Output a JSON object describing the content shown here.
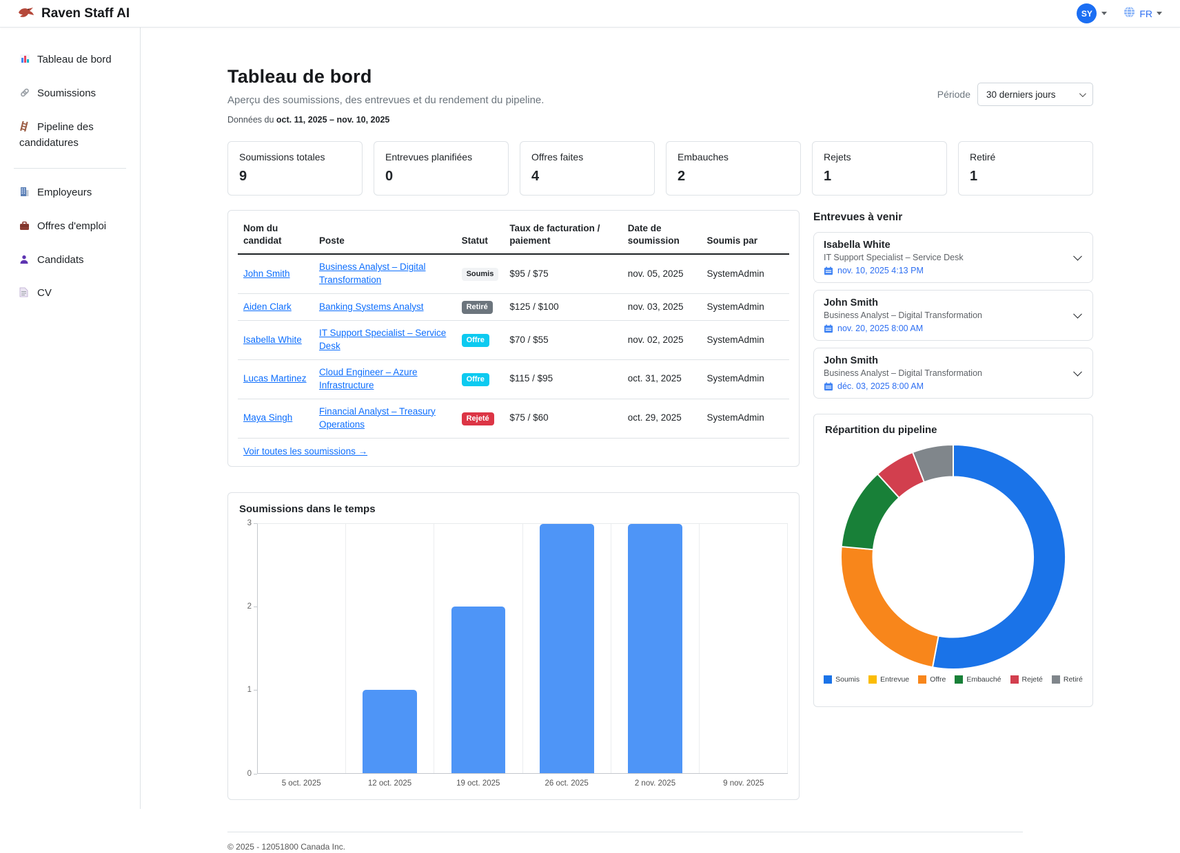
{
  "topbar": {
    "logo_icon": "eagle-icon",
    "title": "Raven Staff AI",
    "avatar_initials": "SY",
    "globe_icon": "globe-icon",
    "language": "FR"
  },
  "sidebar": {
    "items": [
      {
        "id": "dashboard",
        "icon": "bar-chart-icon",
        "label": "Tableau de bord"
      },
      {
        "id": "submissions",
        "icon": "link-icon",
        "label": "Soumissions"
      },
      {
        "id": "pipeline",
        "icon": "ladder-icon",
        "label": "Pipeline des candidatures",
        "divider_after": true
      },
      {
        "id": "employers",
        "icon": "building-icon",
        "label": "Employeurs"
      },
      {
        "id": "jobs",
        "icon": "briefcase-icon",
        "label": "Offres d'emploi"
      },
      {
        "id": "candidates",
        "icon": "person-icon",
        "label": "Candidats"
      },
      {
        "id": "cv",
        "icon": "document-icon",
        "label": "CV"
      }
    ]
  },
  "header": {
    "title": "Tableau de bord",
    "subtitle": "Aperçu des soumissions, des entrevues et du rendement du pipeline.",
    "data_range_prefix": "Données du ",
    "data_range": "oct. 11, 2025 – nov. 10, 2025",
    "period_label": "Période",
    "period_value": "30 derniers jours"
  },
  "stats": [
    {
      "id": "total-submissions",
      "label": "Soumissions totales",
      "value": "9"
    },
    {
      "id": "interviews-scheduled",
      "label": "Entrevues planifiées",
      "value": "0"
    },
    {
      "id": "offers-made",
      "label": "Offres faites",
      "value": "4"
    },
    {
      "id": "hires",
      "label": "Embauches",
      "value": "2"
    },
    {
      "id": "rejections",
      "label": "Rejets",
      "value": "1"
    },
    {
      "id": "withdrawn",
      "label": "Retiré",
      "value": "1"
    }
  ],
  "submissions_table": {
    "columns": [
      "Nom du candidat",
      "Poste",
      "Statut",
      "Taux de facturation / paiement",
      "Date de soumission",
      "Soumis par"
    ],
    "rows": [
      {
        "candidate": "John Smith",
        "position": "Business Analyst – Digital Transformation",
        "status": "Soumis",
        "status_type": "soumis",
        "rate": "$95 / $75",
        "date": "nov. 05, 2025",
        "submitted_by": "SystemAdmin"
      },
      {
        "candidate": "Aiden Clark",
        "position": "Banking Systems Analyst",
        "status": "Retiré",
        "status_type": "retire",
        "rate": "$125 / $100",
        "date": "nov. 03, 2025",
        "submitted_by": "SystemAdmin"
      },
      {
        "candidate": "Isabella White",
        "position": "IT Support Specialist – Service Desk",
        "status": "Offre",
        "status_type": "offre",
        "rate": "$70 / $55",
        "date": "nov. 02, 2025",
        "submitted_by": "SystemAdmin"
      },
      {
        "candidate": "Lucas Martinez",
        "position": "Cloud Engineer – Azure Infrastructure",
        "status": "Offre",
        "status_type": "offre",
        "rate": "$115 / $95",
        "date": "oct. 31, 2025",
        "submitted_by": "SystemAdmin"
      },
      {
        "candidate": "Maya Singh",
        "position": "Financial Analyst – Treasury Operations",
        "status": "Rejeté",
        "status_type": "rejete",
        "rate": "$75 / $60",
        "date": "oct. 29, 2025",
        "submitted_by": "SystemAdmin"
      }
    ],
    "view_all_label": "Voir toutes les soumissions →"
  },
  "status_colors": {
    "soumis": "#f1f3f5",
    "retire": "#6c757d",
    "offre": "#0dcaf0",
    "rejete": "#dc3545"
  },
  "interviews": {
    "title": "Entrevues à venir",
    "calendar_icon": "calendar-icon",
    "items": [
      {
        "name": "Isabella White",
        "position": "IT Support Specialist – Service Desk",
        "datetime": "nov. 10, 2025 4:13 PM"
      },
      {
        "name": "John Smith",
        "position": "Business Analyst – Digital Transformation",
        "datetime": "nov. 20, 2025 8:00 AM"
      },
      {
        "name": "John Smith",
        "position": "Business Analyst – Digital Transformation",
        "datetime": "déc. 03, 2025 8:00 AM"
      }
    ]
  },
  "chart_data": [
    {
      "type": "bar",
      "title": "Soumissions dans le temps",
      "categories": [
        "5 oct. 2025",
        "12 oct. 2025",
        "19 oct. 2025",
        "26 oct. 2025",
        "2 nov. 2025",
        "9 nov. 2025"
      ],
      "values": [
        0,
        1,
        2,
        3,
        3,
        0
      ],
      "xlabel": "",
      "ylabel": "",
      "ylim": [
        0,
        3
      ],
      "yticks": [
        0,
        1,
        2,
        3
      ],
      "bar_color": "#4e95f7",
      "grid": "vertical-only",
      "legend_position": "none"
    },
    {
      "type": "pie",
      "subtype": "donut",
      "title": "Répartition du pipeline",
      "labels": [
        "Soumis",
        "Entrevue",
        "Offre",
        "Embauché",
        "Rejeté",
        "Retiré"
      ],
      "values": [
        9,
        0,
        4,
        2,
        1,
        1
      ],
      "colors": [
        "#1a73e8",
        "#fbbc04",
        "#f8861b",
        "#188038",
        "#d23f4e",
        "#80868b"
      ],
      "hole": 0.715,
      "legend_position": "bottom"
    }
  ],
  "footer": {
    "copyright": "© 2025 - 12051800 Canada Inc."
  }
}
